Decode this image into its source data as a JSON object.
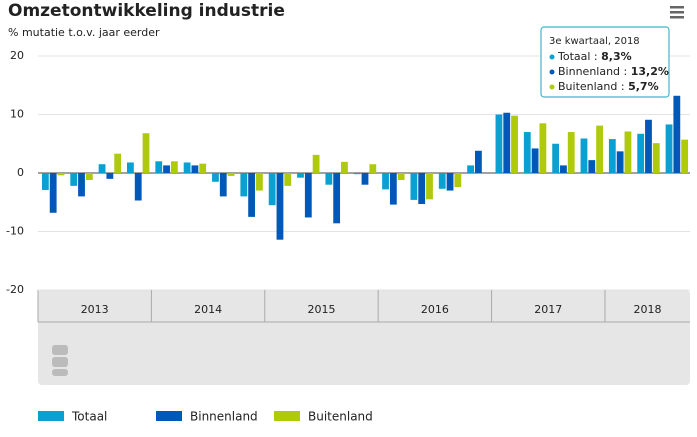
{
  "chart_data": {
    "type": "bar",
    "title": "Omzetontwikkeling industrie",
    "subtitle": "% mutatie t.o.v. jaar eerder",
    "categories": [
      null,
      null,
      null,
      null,
      null,
      null,
      null,
      null,
      null,
      null,
      null,
      null,
      null,
      null,
      null,
      null,
      null,
      null,
      null,
      null,
      null,
      null,
      null
    ],
    "year_labels": [
      "2013",
      "2014",
      "2015",
      "2016",
      "2017",
      "2018"
    ],
    "series": [
      {
        "name": "Totaal",
        "color": "#0aa0d2",
        "values": [
          -2.9,
          -2.2,
          1.5,
          1.8,
          2,
          1.8,
          -1.5,
          -4,
          -5.5,
          -0.8,
          -2,
          -0.2,
          -2.8,
          -4.6,
          -2.7,
          1.3,
          10,
          7,
          5,
          5.9,
          5.8,
          6.7,
          8.3
        ]
      },
      {
        "name": "Binnenland",
        "color": "#0058b8",
        "values": [
          -6.8,
          -4,
          -1,
          -4.7,
          1.3,
          1.3,
          -4,
          -7.5,
          -11.4,
          -7.6,
          -8.6,
          -2,
          -5.4,
          -5.3,
          -3,
          3.8,
          10.3,
          4.2,
          1.3,
          2.2,
          3.7,
          9.1,
          13.2
        ]
      },
      {
        "name": "Buitenland",
        "color": "#afca0b",
        "values": [
          -0.4,
          -1.2,
          3.3,
          6.8,
          2,
          1.6,
          -0.5,
          -3,
          -2.2,
          3.1,
          1.9,
          1.5,
          -1.2,
          -4.5,
          -2.4,
          0,
          9.8,
          8.5,
          7,
          8.1,
          7.1,
          5.1,
          5.7
        ]
      }
    ],
    "ylim": [
      -20,
      20
    ],
    "yticks": [
      -20,
      -10,
      0,
      10,
      20
    ],
    "grid": true,
    "tooltip": {
      "title": "3e kwartaal, 2018",
      "separator": " : ",
      "value_labels": [
        "8,3%",
        "13,2%",
        "5,7%"
      ]
    }
  }
}
